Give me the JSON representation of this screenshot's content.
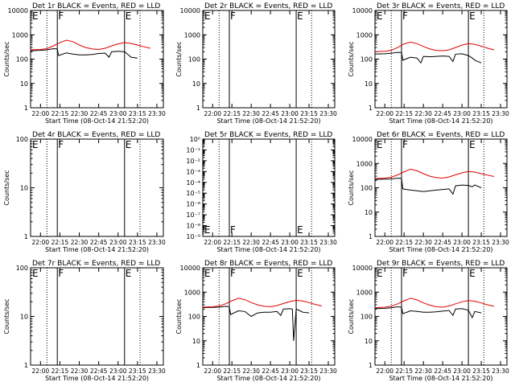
{
  "window": {
    "title": ""
  },
  "chart_data": [
    {
      "type": "line",
      "title": "Det 1r BLACK = Events, RED = LLD",
      "ylabel": "Counts/sec",
      "xlabel": "",
      "yscale": "log",
      "ylim": [
        1,
        10000
      ],
      "ytick_labels": [
        "1",
        "10",
        "100",
        "1000",
        "10000"
      ],
      "xtick_labels": [
        "22:00",
        "22:15",
        "22:30",
        "22:45",
        "23:00",
        "23:15",
        "23:30"
      ],
      "markers": [
        "E",
        "F",
        "E"
      ],
      "series": [
        {
          "name": "Events",
          "color": "#000000",
          "x": [
            "21:52",
            "22:00",
            "22:05",
            "22:10",
            "22:13",
            "22:14",
            "22:20",
            "22:25",
            "22:30",
            "22:35",
            "22:40",
            "22:45",
            "22:50",
            "22:53",
            "22:55",
            "23:00",
            "23:05",
            "23:08",
            "23:10",
            "23:15"
          ],
          "y": [
            220,
            230,
            240,
            270,
            260,
            140,
            180,
            160,
            150,
            150,
            155,
            170,
            175,
            120,
            200,
            210,
            200,
            150,
            120,
            110
          ]
        },
        {
          "name": "LLD",
          "color": "#e00000",
          "x": [
            "21:52",
            "22:00",
            "22:05",
            "22:10",
            "22:15",
            "22:20",
            "22:25",
            "22:30",
            "22:35",
            "22:40",
            "22:45",
            "22:50",
            "22:55",
            "23:00",
            "23:05",
            "23:10",
            "23:15",
            "23:20",
            "23:25"
          ],
          "y": [
            240,
            250,
            270,
            350,
            480,
            600,
            520,
            380,
            300,
            260,
            250,
            280,
            350,
            420,
            480,
            440,
            380,
            320,
            280
          ]
        }
      ]
    },
    {
      "type": "line",
      "title": "Det 2r BLACK = Events, RED = LLD",
      "ylabel": "Counts/sec",
      "xlabel": "",
      "yscale": "log",
      "ylim": [
        1,
        10000
      ],
      "ytick_labels": [
        "1",
        "10",
        "100",
        "1000",
        "10000"
      ],
      "xtick_labels": [
        "22:00",
        "22:15",
        "22:30",
        "22:45",
        "23:00",
        "23:15",
        "23:30"
      ],
      "markers": [
        "E",
        "F",
        "E"
      ],
      "series": []
    },
    {
      "type": "line",
      "title": "Det 3r BLACK = Events, RED = LLD",
      "ylabel": "Counts/sec",
      "xlabel": "",
      "yscale": "log",
      "ylim": [
        1,
        10000
      ],
      "ytick_labels": [
        "1",
        "10",
        "100",
        "1000",
        "10000"
      ],
      "xtick_labels": [
        "22:00",
        "22:15",
        "22:30",
        "22:45",
        "23:00",
        "23:15",
        "23:30"
      ],
      "markers": [
        "E",
        "F",
        "E"
      ],
      "series": [
        {
          "name": "Events",
          "color": "#000000",
          "x": [
            "21:52",
            "22:00",
            "22:05",
            "22:10",
            "22:13",
            "22:14",
            "22:20",
            "22:25",
            "22:28",
            "22:30",
            "22:35",
            "22:40",
            "22:45",
            "22:50",
            "22:53",
            "22:55",
            "23:00",
            "23:05",
            "23:08",
            "23:10",
            "23:15"
          ],
          "y": [
            160,
            165,
            175,
            190,
            185,
            90,
            120,
            110,
            70,
            130,
            125,
            130,
            135,
            130,
            80,
            160,
            165,
            140,
            110,
            90,
            70
          ]
        },
        {
          "name": "LLD",
          "color": "#e00000",
          "x": [
            "21:52",
            "22:00",
            "22:05",
            "22:10",
            "22:15",
            "22:20",
            "22:25",
            "22:30",
            "22:35",
            "22:40",
            "22:45",
            "22:50",
            "22:55",
            "23:00",
            "23:05",
            "23:10",
            "23:15",
            "23:20",
            "23:25"
          ],
          "y": [
            200,
            210,
            230,
            300,
            420,
            500,
            430,
            330,
            260,
            230,
            220,
            240,
            300,
            380,
            430,
            400,
            340,
            280,
            240
          ]
        }
      ]
    },
    {
      "type": "line",
      "title": "Det 4r BLACK = Events, RED = LLD",
      "ylabel": "Counts/sec",
      "xlabel": "",
      "yscale": "log",
      "ylim": [
        1,
        100
      ],
      "ytick_labels": [
        "1",
        "10",
        "100"
      ],
      "xtick_labels": [
        "22:00",
        "22:15",
        "22:30",
        "22:45",
        "23:00",
        "23:15",
        "23:30"
      ],
      "markers": [
        "E",
        "F",
        "E"
      ],
      "series": []
    },
    {
      "type": "line",
      "title": "Det 5r BLACK = Events, RED = LLD",
      "ylabel": "",
      "xlabel": "",
      "yscale": "log",
      "ylim": [
        1e-09,
        1
      ],
      "ytick_labels": [
        "10⁻⁹",
        "10⁻⁸",
        "10⁻⁷",
        "10⁻⁶",
        "10⁻⁵",
        "10⁻⁴",
        "10⁻³",
        "10⁻²",
        "10⁻¹",
        "10⁰"
      ],
      "xtick_labels": [
        "22:00",
        "22:15",
        "22:30",
        "22:45",
        "23:00",
        "23:15",
        "23:30"
      ],
      "markers": [
        "E",
        "F",
        "E"
      ],
      "series": []
    },
    {
      "type": "line",
      "title": "Det 6r BLACK = Events, RED = LLD",
      "ylabel": "Counts/sec",
      "xlabel": "",
      "yscale": "log",
      "ylim": [
        1,
        10000
      ],
      "ytick_labels": [
        "1",
        "10",
        "100",
        "1000",
        "10000"
      ],
      "xtick_labels": [
        "22:00",
        "22:15",
        "22:30",
        "22:45",
        "23:00",
        "23:15",
        "23:30"
      ],
      "markers": [
        "E",
        "F",
        "E"
      ],
      "series": [
        {
          "name": "Events",
          "color": "#000000",
          "x": [
            "21:52",
            "22:00",
            "22:05",
            "22:10",
            "22:13",
            "22:14",
            "22:20",
            "22:25",
            "22:30",
            "22:35",
            "22:40",
            "22:45",
            "22:50",
            "22:53",
            "22:55",
            "23:00",
            "23:05",
            "23:08",
            "23:10",
            "23:15"
          ],
          "y": [
            220,
            225,
            230,
            250,
            240,
            90,
            80,
            75,
            70,
            75,
            80,
            85,
            90,
            55,
            120,
            130,
            125,
            110,
            130,
            100
          ]
        },
        {
          "name": "LLD",
          "color": "#e00000",
          "x": [
            "21:52",
            "22:00",
            "22:05",
            "22:10",
            "22:15",
            "22:20",
            "22:25",
            "22:30",
            "22:35",
            "22:40",
            "22:45",
            "22:50",
            "22:55",
            "23:00",
            "23:05",
            "23:10",
            "23:15",
            "23:20",
            "23:25"
          ],
          "y": [
            240,
            250,
            270,
            340,
            460,
            580,
            500,
            380,
            300,
            260,
            250,
            280,
            340,
            410,
            470,
            440,
            380,
            330,
            290
          ]
        }
      ]
    },
    {
      "type": "line",
      "title": "Det 7r BLACK = Events, RED = LLD",
      "ylabel": "Counts/sec",
      "xlabel": "",
      "yscale": "log",
      "ylim": [
        1,
        100
      ],
      "ytick_labels": [
        "1",
        "10",
        "100"
      ],
      "xtick_labels": [
        "22:00",
        "22:15",
        "22:30",
        "22:45",
        "23:00",
        "23:15",
        "23:30"
      ],
      "markers": [
        "E",
        "F",
        "E"
      ],
      "series": []
    },
    {
      "type": "line",
      "title": "Det 8r BLACK = Events, RED = LLD",
      "ylabel": "Counts/sec",
      "xlabel": "",
      "yscale": "log",
      "ylim": [
        1,
        10000
      ],
      "ytick_labels": [
        "1",
        "10",
        "100",
        "1000",
        "10000"
      ],
      "xtick_labels": [
        "22:00",
        "22:15",
        "22:30",
        "22:45",
        "23:00",
        "23:15",
        "23:30"
      ],
      "markers": [
        "E",
        "F",
        "E"
      ],
      "series": [
        {
          "name": "Events",
          "color": "#000000",
          "x": [
            "21:52",
            "22:00",
            "22:05",
            "22:10",
            "22:13",
            "22:14",
            "22:20",
            "22:25",
            "22:30",
            "22:35",
            "22:40",
            "22:45",
            "22:50",
            "22:53",
            "22:55",
            "23:00",
            "23:02",
            "23:03",
            "23:05",
            "23:08",
            "23:10",
            "23:15"
          ],
          "y": [
            230,
            235,
            240,
            260,
            250,
            120,
            170,
            160,
            100,
            140,
            150,
            150,
            160,
            110,
            200,
            210,
            200,
            10,
            200,
            170,
            150,
            140
          ]
        },
        {
          "name": "LLD",
          "color": "#e00000",
          "x": [
            "21:52",
            "22:00",
            "22:05",
            "22:10",
            "22:15",
            "22:20",
            "22:25",
            "22:30",
            "22:35",
            "22:40",
            "22:45",
            "22:50",
            "22:55",
            "23:00",
            "23:05",
            "23:10",
            "23:15",
            "23:20",
            "23:25"
          ],
          "y": [
            240,
            250,
            270,
            330,
            440,
            560,
            490,
            370,
            300,
            260,
            250,
            280,
            340,
            410,
            460,
            430,
            370,
            310,
            270
          ]
        }
      ]
    },
    {
      "type": "line",
      "title": "Det 9r BLACK = Events, RED = LLD",
      "ylabel": "Counts/sec",
      "xlabel": "",
      "yscale": "log",
      "ylim": [
        1,
        10000
      ],
      "ytick_labels": [
        "1",
        "10",
        "100",
        "1000",
        "10000"
      ],
      "xtick_labels": [
        "22:00",
        "22:15",
        "22:30",
        "22:45",
        "23:00",
        "23:15",
        "23:30"
      ],
      "markers": [
        "E",
        "F",
        "E"
      ],
      "series": [
        {
          "name": "Events",
          "color": "#000000",
          "x": [
            "21:52",
            "22:00",
            "22:05",
            "22:10",
            "22:13",
            "22:14",
            "22:20",
            "22:25",
            "22:30",
            "22:35",
            "22:40",
            "22:45",
            "22:50",
            "22:53",
            "22:55",
            "23:00",
            "23:05",
            "23:08",
            "23:10",
            "23:15"
          ],
          "y": [
            210,
            215,
            225,
            250,
            240,
            130,
            170,
            160,
            150,
            150,
            155,
            165,
            175,
            110,
            200,
            210,
            180,
            90,
            160,
            140
          ]
        },
        {
          "name": "LLD",
          "color": "#e00000",
          "x": [
            "21:52",
            "22:00",
            "22:05",
            "22:10",
            "22:15",
            "22:20",
            "22:25",
            "22:30",
            "22:35",
            "22:40",
            "22:45",
            "22:50",
            "22:55",
            "23:00",
            "23:05",
            "23:10",
            "23:15",
            "23:20",
            "23:25"
          ],
          "y": [
            230,
            240,
            260,
            330,
            440,
            560,
            480,
            360,
            290,
            250,
            240,
            270,
            330,
            400,
            450,
            420,
            360,
            300,
            260
          ]
        }
      ]
    }
  ],
  "panel_xlabel": "Start Time (08-Oct-14 21:52:20)",
  "ranges": {
    "x_start": "21:52:20",
    "x_end": "23:35",
    "dotted_markers": [
      "22:05",
      "23:17"
    ],
    "solid_markers": [
      "22:13",
      "23:05"
    ]
  }
}
